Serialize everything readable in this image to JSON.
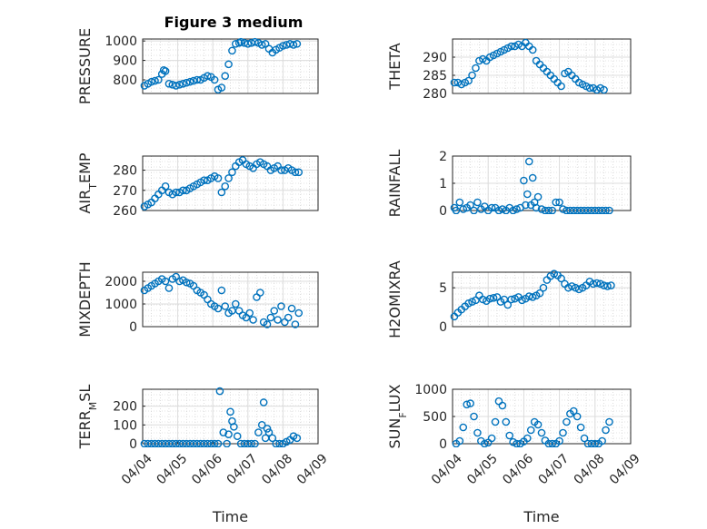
{
  "figure": {
    "title": "Figure 3 medium"
  },
  "chart_data": [
    {
      "type": "scatter",
      "ylabel": "PRESSURE",
      "ylabel_sub": "",
      "ylim": [
        730,
        1010
      ],
      "yticks": [
        800,
        900,
        1000
      ],
      "xlim": [
        0,
        5
      ],
      "xticks": [],
      "x": [
        0.05,
        0.15,
        0.25,
        0.35,
        0.45,
        0.55,
        0.6,
        0.65,
        0.75,
        0.85,
        0.95,
        1.05,
        1.15,
        1.25,
        1.35,
        1.45,
        1.55,
        1.65,
        1.75,
        1.85,
        1.95,
        2.05,
        2.15,
        2.25,
        2.35,
        2.45,
        2.55,
        2.65,
        2.75,
        2.8,
        2.9,
        3.0,
        3.1,
        3.2,
        3.3,
        3.4,
        3.5,
        3.6,
        3.7,
        3.8,
        3.9,
        4.0,
        4.1,
        4.2,
        4.3,
        4.4
      ],
      "y": [
        770,
        780,
        790,
        795,
        800,
        830,
        850,
        845,
        780,
        775,
        770,
        775,
        780,
        785,
        790,
        795,
        800,
        800,
        810,
        820,
        815,
        800,
        750,
        760,
        820,
        880,
        950,
        985,
        990,
        995,
        990,
        985,
        990,
        995,
        990,
        980,
        985,
        960,
        940,
        955,
        965,
        975,
        980,
        985,
        980,
        985
      ],
      "color": "#0072BD"
    },
    {
      "type": "scatter",
      "ylabel": "THETA",
      "ylabel_sub": "",
      "ylim": [
        280,
        295
      ],
      "yticks": [
        280,
        285,
        290
      ],
      "xlim": [
        0,
        5
      ],
      "xticks": [],
      "x": [
        0.05,
        0.15,
        0.25,
        0.35,
        0.45,
        0.55,
        0.65,
        0.75,
        0.85,
        0.95,
        1.05,
        1.15,
        1.25,
        1.35,
        1.45,
        1.55,
        1.65,
        1.75,
        1.85,
        1.95,
        2.05,
        2.15,
        2.25,
        2.35,
        2.45,
        2.55,
        2.65,
        2.75,
        2.85,
        2.95,
        3.05,
        3.15,
        3.25,
        3.35,
        3.45,
        3.55,
        3.65,
        3.75,
        3.85,
        3.95,
        4.05,
        4.15,
        4.25
      ],
      "y": [
        283,
        283,
        282.5,
        283,
        283.5,
        285,
        287,
        289,
        289.5,
        289,
        290,
        290.5,
        291,
        291.5,
        292,
        292.5,
        293,
        293,
        293.5,
        293,
        294,
        293,
        292,
        289,
        288,
        287,
        286,
        285,
        284,
        283,
        282,
        285.5,
        286,
        285,
        284,
        283,
        282.5,
        282,
        281.5,
        281.5,
        281,
        281.5,
        281
      ],
      "color": "#0072BD"
    },
    {
      "type": "scatter",
      "ylabel": "AIR",
      "ylabel_sub": "T",
      "ylabel_suffix": "EMP",
      "ylim": [
        260,
        287
      ],
      "yticks": [
        260,
        270,
        280
      ],
      "xlim": [
        0,
        5
      ],
      "xticks": [],
      "x": [
        0.05,
        0.15,
        0.25,
        0.35,
        0.45,
        0.55,
        0.65,
        0.75,
        0.85,
        0.95,
        1.05,
        1.15,
        1.25,
        1.35,
        1.45,
        1.55,
        1.65,
        1.75,
        1.85,
        1.95,
        2.05,
        2.15,
        2.25,
        2.35,
        2.45,
        2.55,
        2.65,
        2.75,
        2.85,
        2.95,
        3.05,
        3.15,
        3.25,
        3.35,
        3.45,
        3.55,
        3.65,
        3.75,
        3.85,
        3.95,
        4.05,
        4.15,
        4.25,
        4.35,
        4.45
      ],
      "y": [
        262,
        263,
        264,
        266,
        268,
        270,
        272,
        269,
        268,
        269,
        269,
        270,
        270,
        271,
        272,
        273,
        274,
        275,
        275,
        276,
        277,
        276,
        269,
        272,
        276,
        279,
        282,
        284,
        285,
        283,
        282,
        281,
        283,
        284,
        283,
        282,
        280,
        281,
        282,
        280,
        280,
        281,
        280,
        279,
        279
      ],
      "color": "#0072BD"
    },
    {
      "type": "scatter",
      "ylabel": "RAINFALL",
      "ylabel_sub": "",
      "ylim": [
        0,
        2
      ],
      "yticks": [
        0,
        1,
        2
      ],
      "xlim": [
        0,
        5
      ],
      "xticks": [],
      "x": [
        0.05,
        0.1,
        0.2,
        0.3,
        0.4,
        0.5,
        0.6,
        0.7,
        0.8,
        0.9,
        1.0,
        1.1,
        1.2,
        1.3,
        1.4,
        1.5,
        1.6,
        1.7,
        1.8,
        1.9,
        2.0,
        2.05,
        2.1,
        2.15,
        2.2,
        2.25,
        2.3,
        2.35,
        2.4,
        2.5,
        2.6,
        2.7,
        2.8,
        2.9,
        3.0,
        3.1,
        3.2,
        3.3,
        3.4,
        3.5,
        3.6,
        3.7,
        3.8,
        3.9,
        4.0,
        4.1,
        4.2,
        4.3,
        4.4
      ],
      "y": [
        0.1,
        0,
        0.3,
        0.05,
        0.1,
        0.2,
        0,
        0.3,
        0.05,
        0.15,
        0,
        0.1,
        0.1,
        0,
        0.05,
        0,
        0.1,
        0,
        0.05,
        0.1,
        1.1,
        0.2,
        0.6,
        1.8,
        0.2,
        1.2,
        0.3,
        0.1,
        0.5,
        0.05,
        0,
        0,
        0,
        0.3,
        0.3,
        0.05,
        0,
        0,
        0,
        0,
        0,
        0,
        0,
        0,
        0,
        0,
        0,
        0,
        0
      ],
      "color": "#0072BD"
    },
    {
      "type": "scatter",
      "ylabel": "MIXDEPTH",
      "ylabel_sub": "",
      "ylim": [
        0,
        2400
      ],
      "yticks": [
        0,
        1000,
        2000
      ],
      "xlim": [
        0,
        5
      ],
      "xticks": [],
      "x": [
        0.05,
        0.15,
        0.25,
        0.35,
        0.45,
        0.55,
        0.65,
        0.75,
        0.85,
        0.95,
        1.05,
        1.15,
        1.25,
        1.35,
        1.45,
        1.55,
        1.65,
        1.75,
        1.85,
        1.95,
        2.05,
        2.15,
        2.25,
        2.35,
        2.45,
        2.55,
        2.65,
        2.75,
        2.85,
        2.95,
        3.05,
        3.15,
        3.25,
        3.35,
        3.45,
        3.55,
        3.65,
        3.75,
        3.85,
        3.95,
        4.05,
        4.15,
        4.25,
        4.35,
        4.45
      ],
      "y": [
        1600,
        1700,
        1800,
        1900,
        2000,
        2100,
        2000,
        1700,
        2100,
        2200,
        2000,
        2050,
        1950,
        1900,
        1800,
        1600,
        1500,
        1400,
        1200,
        1000,
        900,
        800,
        1600,
        900,
        600,
        700,
        1000,
        700,
        500,
        400,
        600,
        300,
        1300,
        1500,
        200,
        100,
        400,
        700,
        300,
        900,
        200,
        400,
        800,
        100,
        600
      ],
      "color": "#0072BD"
    },
    {
      "type": "scatter",
      "ylabel": "H2OMIXRA",
      "ylabel_sub": "",
      "ylim": [
        0,
        7
      ],
      "yticks": [
        0,
        5
      ],
      "xlim": [
        0,
        5
      ],
      "xticks": [],
      "x": [
        0.05,
        0.15,
        0.25,
        0.35,
        0.45,
        0.55,
        0.65,
        0.75,
        0.85,
        0.95,
        1.05,
        1.15,
        1.25,
        1.35,
        1.45,
        1.55,
        1.65,
        1.75,
        1.85,
        1.95,
        2.05,
        2.15,
        2.25,
        2.35,
        2.45,
        2.55,
        2.65,
        2.75,
        2.85,
        2.95,
        3.05,
        3.15,
        3.25,
        3.35,
        3.45,
        3.55,
        3.65,
        3.75,
        3.85,
        3.95,
        4.05,
        4.15,
        4.25,
        4.35,
        4.45
      ],
      "y": [
        1.3,
        1.8,
        2.2,
        2.6,
        3.0,
        3.2,
        3.4,
        4.0,
        3.5,
        3.3,
        3.6,
        3.7,
        3.8,
        3.2,
        3.5,
        2.8,
        3.5,
        3.6,
        3.8,
        3.4,
        3.6,
        3.9,
        3.8,
        4.0,
        4.3,
        5.0,
        6.0,
        6.5,
        6.8,
        6.6,
        6.2,
        5.5,
        5.0,
        5.2,
        5.0,
        4.8,
        5.0,
        5.3,
        5.8,
        5.5,
        5.6,
        5.5,
        5.3,
        5.2,
        5.3
      ],
      "color": "#0072BD"
    },
    {
      "type": "scatter",
      "ylabel": "TERR",
      "ylabel_sub": "M",
      "ylabel_suffix": "SL",
      "ylim": [
        0,
        290
      ],
      "yticks": [
        0,
        100,
        200
      ],
      "xlim": [
        0,
        5
      ],
      "xticks": [
        0,
        1,
        2,
        3,
        4,
        5
      ],
      "xticklabels": [
        "04/04",
        "04/05",
        "04/06",
        "04/07",
        "04/08",
        "04/09"
      ],
      "xlabel": "Time",
      "x": [
        0.05,
        0.15,
        0.25,
        0.35,
        0.45,
        0.55,
        0.65,
        0.75,
        0.85,
        0.95,
        1.05,
        1.15,
        1.25,
        1.35,
        1.45,
        1.55,
        1.65,
        1.75,
        1.85,
        1.95,
        2.05,
        2.15,
        2.2,
        2.3,
        2.4,
        2.45,
        2.5,
        2.55,
        2.6,
        2.7,
        2.8,
        2.9,
        3.0,
        3.1,
        3.2,
        3.3,
        3.4,
        3.45,
        3.5,
        3.55,
        3.6,
        3.7,
        3.8,
        3.9,
        4.0,
        4.1,
        4.2,
        4.3,
        4.4
      ],
      "y": [
        0,
        0,
        0,
        0,
        0,
        0,
        0,
        0,
        0,
        0,
        0,
        0,
        0,
        0,
        0,
        0,
        0,
        0,
        0,
        0,
        0,
        0,
        280,
        60,
        0,
        50,
        170,
        120,
        90,
        40,
        0,
        0,
        0,
        0,
        0,
        60,
        100,
        220,
        30,
        80,
        60,
        30,
        0,
        0,
        0,
        10,
        20,
        40,
        30
      ],
      "color": "#0072BD"
    },
    {
      "type": "scatter",
      "ylabel": "SUN",
      "ylabel_sub": "F",
      "ylabel_suffix": "LUX",
      "ylim": [
        0,
        1000
      ],
      "yticks": [
        0,
        500,
        1000
      ],
      "xlim": [
        0,
        5
      ],
      "xticks": [
        0,
        1,
        2,
        3,
        4,
        5
      ],
      "xticklabels": [
        "04/04",
        "04/05",
        "04/06",
        "04/07",
        "04/08",
        "04/09"
      ],
      "xlabel": "Time",
      "x": [
        0.1,
        0.2,
        0.3,
        0.4,
        0.5,
        0.6,
        0.7,
        0.8,
        0.9,
        1.0,
        1.1,
        1.2,
        1.3,
        1.4,
        1.5,
        1.6,
        1.7,
        1.8,
        1.9,
        2.0,
        2.1,
        2.2,
        2.3,
        2.4,
        2.5,
        2.6,
        2.7,
        2.8,
        2.9,
        3.0,
        3.1,
        3.2,
        3.3,
        3.4,
        3.5,
        3.6,
        3.7,
        3.8,
        3.9,
        4.0,
        4.1,
        4.2,
        4.3,
        4.4
      ],
      "y": [
        0,
        50,
        300,
        720,
        740,
        500,
        200,
        50,
        0,
        20,
        100,
        400,
        780,
        700,
        400,
        150,
        30,
        0,
        0,
        40,
        100,
        250,
        400,
        350,
        200,
        60,
        0,
        0,
        0,
        50,
        200,
        400,
        550,
        600,
        500,
        300,
        100,
        0,
        0,
        0,
        0,
        50,
        250,
        400
      ],
      "color": "#0072BD"
    }
  ]
}
